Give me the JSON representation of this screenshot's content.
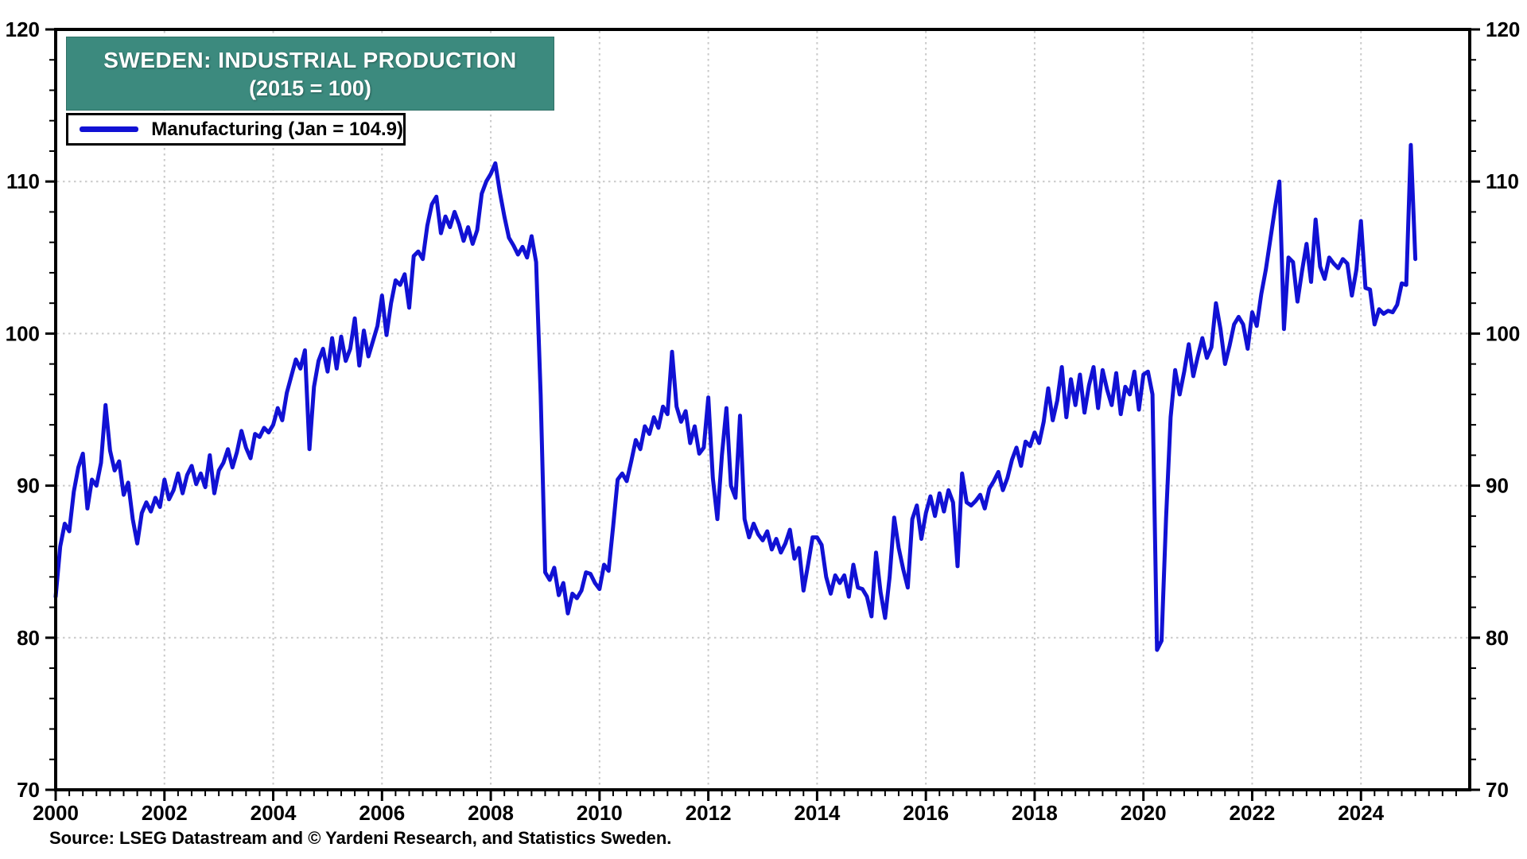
{
  "header": {
    "title_line1": "SWEDEN: INDUSTRIAL PRODUCTION",
    "title_line2": "(2015 = 100)"
  },
  "legend": {
    "label": "Manufacturing (Jan = 104.9)"
  },
  "footer": {
    "source": "Source: LSEG Datastream and © Yardeni Research, and Statistics Sweden."
  },
  "colors": {
    "line": "#1111d4",
    "title_bg": "#3c8a7e",
    "title_text": "#ffffff",
    "grid": "#c9c9c9",
    "axis": "#000000"
  },
  "chart_data": {
    "type": "line",
    "title": "SWEDEN: INDUSTRIAL PRODUCTION (2015 = 100)",
    "xlabel": "",
    "ylabel": "",
    "x_min": 2000,
    "x_max": 2026,
    "ylim": [
      70,
      120
    ],
    "y_major_ticks": [
      70,
      80,
      90,
      100,
      110,
      120
    ],
    "y_minor_step": 2,
    "y_gridlines": [
      80,
      90,
      100,
      110
    ],
    "x_label_years": [
      2000,
      2002,
      2004,
      2006,
      2008,
      2010,
      2012,
      2014,
      2016,
      2018,
      2020,
      2022,
      2024
    ],
    "x_minor_step_months": 3,
    "grid": "dotted",
    "legend_position": "top-left",
    "series": [
      {
        "name": "Manufacturing",
        "start": "2000-01",
        "end": "2025-01",
        "frequency": "monthly",
        "last_value_label": "Jan = 104.9",
        "values": [
          82.7,
          86.0,
          87.5,
          87.0,
          89.6,
          91.2,
          92.1,
          88.5,
          90.4,
          90.0,
          91.5,
          95.3,
          92.3,
          91.0,
          91.6,
          89.4,
          90.2,
          87.8,
          86.2,
          88.2,
          88.9,
          88.3,
          89.2,
          88.6,
          90.4,
          89.1,
          89.7,
          90.8,
          89.5,
          90.7,
          91.3,
          90.1,
          90.8,
          89.9,
          92.0,
          89.5,
          91.0,
          91.5,
          92.4,
          91.2,
          92.2,
          93.6,
          92.5,
          91.8,
          93.4,
          93.2,
          93.8,
          93.5,
          94.0,
          95.1,
          94.3,
          96.1,
          97.2,
          98.3,
          97.7,
          98.9,
          92.4,
          96.5,
          98.2,
          99.0,
          97.5,
          99.7,
          97.7,
          99.8,
          98.2,
          99.0,
          101.0,
          97.9,
          100.2,
          98.5,
          99.5,
          100.5,
          102.5,
          99.9,
          102.0,
          103.5,
          103.2,
          103.9,
          101.7,
          105.1,
          105.4,
          104.9,
          107.1,
          108.5,
          109.0,
          106.6,
          107.7,
          107.0,
          108.0,
          107.2,
          106.1,
          107.0,
          105.9,
          106.8,
          109.2,
          110.0,
          110.5,
          111.2,
          109.3,
          107.7,
          106.3,
          105.8,
          105.2,
          105.7,
          105.0,
          106.4,
          104.7,
          96.0,
          84.3,
          83.8,
          84.6,
          82.8,
          83.6,
          81.6,
          82.9,
          82.6,
          83.1,
          84.3,
          84.2,
          83.6,
          83.2,
          84.8,
          84.4,
          87.3,
          90.4,
          90.8,
          90.3,
          91.6,
          93.0,
          92.4,
          93.9,
          93.4,
          94.5,
          93.8,
          95.2,
          94.7,
          98.8,
          95.2,
          94.2,
          94.9,
          92.8,
          93.9,
          92.1,
          92.5,
          95.8,
          90.5,
          87.8,
          92.0,
          95.1,
          90.0,
          89.2,
          94.6,
          87.8,
          86.6,
          87.5,
          86.8,
          86.4,
          87.0,
          85.8,
          86.5,
          85.6,
          86.2,
          87.1,
          85.2,
          85.9,
          83.1,
          84.8,
          86.6,
          86.6,
          86.1,
          84.0,
          82.9,
          84.1,
          83.6,
          84.1,
          82.7,
          84.8,
          83.3,
          83.2,
          82.7,
          81.4,
          85.6,
          83.0,
          81.3,
          84.0,
          87.9,
          85.9,
          84.5,
          83.3,
          87.8,
          88.7,
          86.5,
          88.2,
          89.3,
          88.0,
          89.5,
          88.3,
          89.7,
          88.9,
          84.7,
          90.8,
          88.9,
          88.7,
          89.0,
          89.4,
          88.5,
          89.8,
          90.3,
          90.9,
          89.7,
          90.5,
          91.7,
          92.5,
          91.3,
          92.9,
          92.6,
          93.5,
          92.8,
          94.2,
          96.4,
          94.3,
          95.6,
          97.8,
          94.5,
          97.0,
          95.3,
          97.3,
          94.8,
          96.6,
          97.8,
          95.1,
          97.6,
          96.3,
          95.3,
          97.4,
          94.7,
          96.5,
          96.0,
          97.5,
          95.0,
          97.3,
          97.5,
          96.0,
          79.2,
          79.8,
          87.9,
          94.5,
          97.6,
          96.0,
          97.5,
          99.3,
          97.2,
          98.5,
          99.7,
          98.4,
          99.1,
          102.0,
          100.3,
          98.0,
          99.2,
          100.6,
          101.1,
          100.6,
          99.0,
          101.4,
          100.5,
          102.6,
          104.2,
          106.2,
          108.2,
          110.0,
          100.3,
          105.0,
          104.7,
          102.1,
          104.1,
          105.9,
          103.4,
          107.5,
          104.4,
          103.6,
          105.0,
          104.6,
          104.3,
          104.9,
          104.6,
          102.5,
          104.2,
          107.4,
          103.0,
          102.9,
          100.6,
          101.6,
          101.3,
          101.5,
          101.4,
          101.9,
          103.3,
          103.2,
          112.4,
          104.9
        ]
      }
    ]
  }
}
